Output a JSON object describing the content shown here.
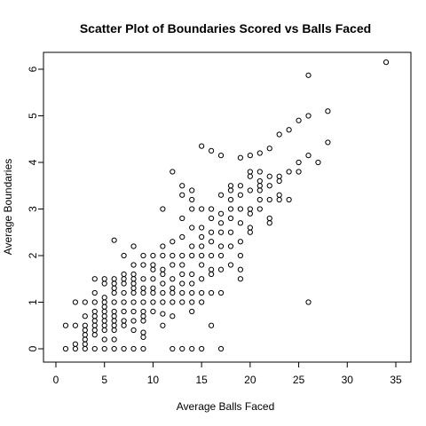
{
  "chart_data": {
    "type": "scatter",
    "title": "Scatter Plot of Boundaries Scored vs Balls Faced",
    "xlabel": "Average Balls Faced",
    "ylabel": "Average Boundaries",
    "xlim": [
      0,
      35
    ],
    "ylim": [
      0,
      6.2
    ],
    "xticks": [
      0,
      5,
      10,
      15,
      20,
      25,
      30,
      35
    ],
    "yticks": [
      0,
      1,
      2,
      3,
      4,
      5,
      6
    ],
    "grid": false,
    "legend": "none",
    "marker": "open-circle",
    "colors": {
      "point": "#000000",
      "axis": "#000000",
      "background": "#ffffff"
    },
    "series": [
      {
        "points": [
          [
            1,
            0
          ],
          [
            1,
            0.5
          ],
          [
            2,
            0
          ],
          [
            2,
            0.1
          ],
          [
            2,
            0.5
          ],
          [
            2,
            1
          ],
          [
            3,
            0
          ],
          [
            3,
            0.1
          ],
          [
            3,
            0.2
          ],
          [
            3,
            0.3
          ],
          [
            3,
            0.4
          ],
          [
            3,
            0.5
          ],
          [
            3,
            0.7
          ],
          [
            3,
            1
          ],
          [
            4,
            0
          ],
          [
            4,
            0.3
          ],
          [
            4,
            0.4
          ],
          [
            4,
            0.5
          ],
          [
            4,
            0.6
          ],
          [
            4,
            0.7
          ],
          [
            4,
            0.8
          ],
          [
            4,
            1
          ],
          [
            4,
            1.2
          ],
          [
            4,
            1.5
          ],
          [
            5,
            0
          ],
          [
            5,
            0.2
          ],
          [
            5,
            0.4
          ],
          [
            5,
            0.5
          ],
          [
            5,
            0.6
          ],
          [
            5,
            0.7
          ],
          [
            5,
            0.8
          ],
          [
            5,
            0.9
          ],
          [
            5,
            1
          ],
          [
            5,
            1.1
          ],
          [
            5,
            1.4
          ],
          [
            5,
            1.5
          ],
          [
            6,
            0
          ],
          [
            6,
            0.2
          ],
          [
            6,
            0.4
          ],
          [
            6,
            0.5
          ],
          [
            6,
            0.6
          ],
          [
            6,
            0.7
          ],
          [
            6,
            0.8
          ],
          [
            6,
            1
          ],
          [
            6,
            1.2
          ],
          [
            6,
            1.3
          ],
          [
            6,
            1.4
          ],
          [
            6,
            1.5
          ],
          [
            6,
            2.33
          ],
          [
            7,
            0
          ],
          [
            7,
            0.5
          ],
          [
            7,
            0.6
          ],
          [
            7,
            0.8
          ],
          [
            7,
            1
          ],
          [
            7,
            1.2
          ],
          [
            7,
            1.4
          ],
          [
            7,
            1.5
          ],
          [
            7,
            1.6
          ],
          [
            7,
            2
          ],
          [
            8,
            0
          ],
          [
            8,
            0.4
          ],
          [
            8,
            0.6
          ],
          [
            8,
            0.8
          ],
          [
            8,
            1
          ],
          [
            8,
            1.2
          ],
          [
            8,
            1.3
          ],
          [
            8,
            1.4
          ],
          [
            8,
            1.5
          ],
          [
            8,
            1.6
          ],
          [
            8,
            1.8
          ],
          [
            8,
            2.2
          ],
          [
            9,
            0
          ],
          [
            9,
            0.25
          ],
          [
            9,
            0.35
          ],
          [
            9,
            0.6
          ],
          [
            9,
            0.7
          ],
          [
            9,
            0.8
          ],
          [
            9,
            1
          ],
          [
            9,
            1.2
          ],
          [
            9,
            1.3
          ],
          [
            9,
            1.5
          ],
          [
            9,
            1.8
          ],
          [
            9,
            2
          ],
          [
            10,
            0.8
          ],
          [
            10,
            1
          ],
          [
            10,
            1.2
          ],
          [
            10,
            1.3
          ],
          [
            10,
            1.5
          ],
          [
            10,
            1.7
          ],
          [
            10,
            1.8
          ],
          [
            10,
            2
          ],
          [
            11,
            0.5
          ],
          [
            11,
            0.75
          ],
          [
            11,
            1
          ],
          [
            11,
            1.2
          ],
          [
            11,
            1.4
          ],
          [
            11,
            1.6
          ],
          [
            11,
            1.7
          ],
          [
            11,
            2
          ],
          [
            11,
            2.2
          ],
          [
            11,
            3
          ],
          [
            12,
            0
          ],
          [
            12,
            0.7
          ],
          [
            12,
            1
          ],
          [
            12,
            1.2
          ],
          [
            12,
            1.3
          ],
          [
            12,
            1.5
          ],
          [
            12,
            1.8
          ],
          [
            12,
            2
          ],
          [
            12,
            2.3
          ],
          [
            12,
            3.8
          ],
          [
            13,
            0
          ],
          [
            13,
            1
          ],
          [
            13,
            1.2
          ],
          [
            13,
            1.4
          ],
          [
            13,
            1.6
          ],
          [
            13,
            1.8
          ],
          [
            13,
            2
          ],
          [
            13,
            2.4
          ],
          [
            13,
            2.8
          ],
          [
            13,
            3.3
          ],
          [
            13,
            3.5
          ],
          [
            14,
            0
          ],
          [
            14,
            0.8
          ],
          [
            14,
            1
          ],
          [
            14,
            1.2
          ],
          [
            14,
            1.4
          ],
          [
            14,
            1.6
          ],
          [
            14,
            2
          ],
          [
            14,
            2.2
          ],
          [
            14,
            2.6
          ],
          [
            14,
            3
          ],
          [
            14,
            3.2
          ],
          [
            14,
            3.4
          ],
          [
            15,
            0
          ],
          [
            15,
            1
          ],
          [
            15,
            1.2
          ],
          [
            15,
            1.5
          ],
          [
            15,
            1.8
          ],
          [
            15,
            2
          ],
          [
            15,
            2.2
          ],
          [
            15,
            2.4
          ],
          [
            15,
            2.6
          ],
          [
            15,
            3
          ],
          [
            15,
            4.35
          ],
          [
            16,
            0.5
          ],
          [
            16,
            1.2
          ],
          [
            16,
            1.6
          ],
          [
            16,
            1.7
          ],
          [
            16,
            2
          ],
          [
            16,
            2.3
          ],
          [
            16,
            2.5
          ],
          [
            16,
            2.8
          ],
          [
            16,
            3
          ],
          [
            16,
            4.25
          ],
          [
            17,
            0
          ],
          [
            17,
            1.2
          ],
          [
            17,
            1.7
          ],
          [
            17,
            2
          ],
          [
            17,
            2.2
          ],
          [
            17,
            2.5
          ],
          [
            17,
            2.7
          ],
          [
            17,
            2.9
          ],
          [
            17,
            3.3
          ],
          [
            17,
            4.15
          ],
          [
            18,
            1.8
          ],
          [
            18,
            2.2
          ],
          [
            18,
            2.5
          ],
          [
            18,
            2.8
          ],
          [
            18,
            3
          ],
          [
            18,
            3.2
          ],
          [
            18,
            3.4
          ],
          [
            18,
            3.5
          ],
          [
            19,
            1.5
          ],
          [
            19,
            1.7
          ],
          [
            19,
            2
          ],
          [
            19,
            2.3
          ],
          [
            19,
            2.7
          ],
          [
            19,
            3
          ],
          [
            19,
            3.3
          ],
          [
            19,
            3.5
          ],
          [
            19,
            4.1
          ],
          [
            20,
            2.5
          ],
          [
            20,
            2.6
          ],
          [
            20,
            2.9
          ],
          [
            20,
            3
          ],
          [
            20,
            3.4
          ],
          [
            20,
            3.7
          ],
          [
            20,
            3.8
          ],
          [
            20,
            4.15
          ],
          [
            21,
            3
          ],
          [
            21,
            3.2
          ],
          [
            21,
            3.4
          ],
          [
            21,
            3.5
          ],
          [
            21,
            3.6
          ],
          [
            21,
            3.8
          ],
          [
            21,
            4.2
          ],
          [
            22,
            2.7
          ],
          [
            22,
            2.8
          ],
          [
            22,
            3.2
          ],
          [
            22,
            3.5
          ],
          [
            22,
            3.7
          ],
          [
            22,
            4.3
          ],
          [
            23,
            3.2
          ],
          [
            23,
            3.3
          ],
          [
            23,
            3.6
          ],
          [
            23,
            3.7
          ],
          [
            23,
            4.6
          ],
          [
            24,
            3.2
          ],
          [
            24,
            3.8
          ],
          [
            24,
            4.7
          ],
          [
            25,
            3.8
          ],
          [
            25,
            4
          ],
          [
            25,
            4.9
          ],
          [
            26,
            1
          ],
          [
            26,
            4.15
          ],
          [
            26,
            5
          ],
          [
            26,
            5.87
          ],
          [
            27,
            4
          ],
          [
            28,
            4.43
          ],
          [
            28,
            5.1
          ],
          [
            34,
            6.15
          ]
        ]
      }
    ]
  }
}
